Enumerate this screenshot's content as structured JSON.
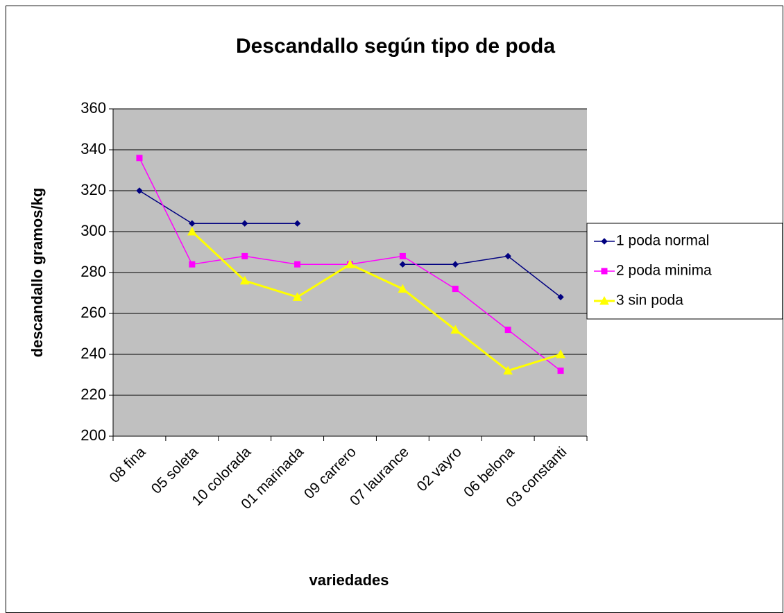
{
  "chart_data": {
    "type": "line",
    "title": "Descandallo según tipo de poda",
    "x_label": "variedades",
    "y_label": "descandallo gramos/kg",
    "categories": [
      "08 fina",
      "05 soleta",
      "10 colorada",
      "01 marinada",
      "09 carrero",
      "07 laurance",
      "02 vayro",
      "06 belona",
      "03 constanti"
    ],
    "series": [
      {
        "name": "1 poda normal",
        "color": "#000080",
        "marker": "diamond",
        "values": [
          320,
          304,
          304,
          304,
          null,
          284,
          284,
          288,
          268
        ]
      },
      {
        "name": "2 poda minima",
        "color": "#ff00ff",
        "marker": "square",
        "values": [
          336,
          284,
          288,
          284,
          284,
          288,
          272,
          252,
          232
        ]
      },
      {
        "name": "3 sin poda",
        "color": "#ffff00",
        "marker": "triangle",
        "values": [
          null,
          300,
          276,
          268,
          284,
          272,
          252,
          232,
          240
        ]
      }
    ],
    "ylim": [
      200,
      360
    ],
    "yticks": [
      200,
      220,
      240,
      260,
      280,
      300,
      320,
      340,
      360
    ],
    "grid": true,
    "legend": "right"
  }
}
